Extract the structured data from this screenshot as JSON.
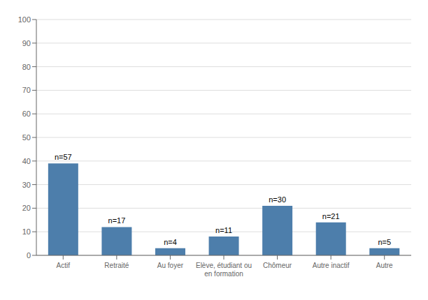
{
  "chart_data": {
    "type": "bar",
    "categories": [
      "Actif",
      "Retraité",
      "Au foyer",
      "Elève, étudiant ou\nen formation",
      "Chômeur",
      "Autre inactif",
      "Autre"
    ],
    "values": [
      39,
      12,
      3,
      8,
      21,
      14,
      3
    ],
    "value_labels": [
      "n=57",
      "n=17",
      "n=4",
      "n=11",
      "n=30",
      "n=21",
      "n=5"
    ],
    "color": "#4d7eab",
    "ylim": [
      0,
      100
    ],
    "yticks": [
      0,
      10,
      20,
      30,
      40,
      50,
      60,
      70,
      80,
      90,
      100
    ],
    "grid": true
  }
}
